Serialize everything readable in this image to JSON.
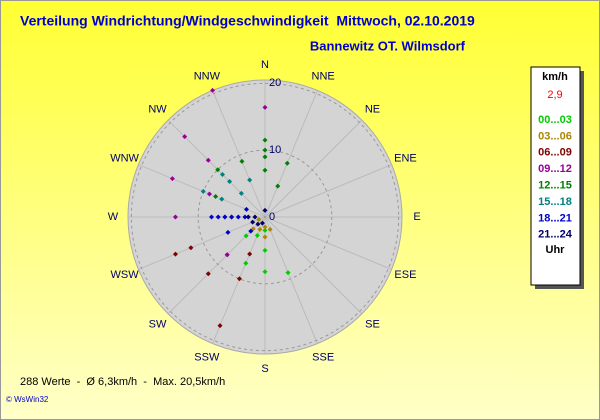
{
  "chart_data": {
    "type": "polar_scatter",
    "title": "Verteilung Windrichtung/Windgeschwindigkeit  Mittwoch, 02.10.2019",
    "subtitle": "Bannewitz OT. Wilmsdorf",
    "categories": [
      "N",
      "NNE",
      "NE",
      "ENE",
      "E",
      "ESE",
      "SE",
      "SSE",
      "S",
      "SSW",
      "SW",
      "WSW",
      "W",
      "WNW",
      "NW",
      "NNW"
    ],
    "rlim": [
      0,
      20.5
    ],
    "rticks": [
      0,
      10,
      20
    ],
    "legend_title": "km/h",
    "legend_value": "2,9",
    "legend_footer": "Uhr",
    "footer": "288 Werte  -  Ø 6,3km/h  -  Max. 20,5km/h",
    "credit": "© WsWin32",
    "series": [
      {
        "name": "00...03",
        "color": "#00cc00",
        "directions": [
          "S",
          "SSE",
          "SSW",
          "S",
          "SW",
          "SSW",
          "S"
        ],
        "values": [
          8.2,
          9,
          7.5,
          5,
          4,
          3,
          2
        ]
      },
      {
        "name": "03...06",
        "color": "#aa8800",
        "directions": [
          "S",
          "SSW",
          "SW",
          "SSE",
          "S",
          "WSW"
        ],
        "values": [
          3,
          2,
          2.5,
          2,
          1.5,
          1
        ]
      },
      {
        "name": "06...09",
        "color": "#800000",
        "directions": [
          "SSW",
          "WSW",
          "SW",
          "WSW",
          "SSW",
          "W",
          "SW",
          "SSW"
        ],
        "values": [
          17.6,
          14.5,
          12,
          12,
          10,
          5,
          8,
          6
        ]
      },
      {
        "name": "09...12",
        "color": "#990099",
        "directions": [
          "NNW",
          "NW",
          "WNW",
          "W",
          "N",
          "NW",
          "WNW",
          "SW"
        ],
        "values": [
          20.5,
          17,
          15,
          13.4,
          16.4,
          12,
          9,
          8
        ]
      },
      {
        "name": "12...15",
        "color": "#008000",
        "directions": [
          "N",
          "N",
          "N",
          "N",
          "NNW",
          "NNE",
          "NW",
          "NNE",
          "WNW"
        ],
        "values": [
          11.5,
          10,
          9,
          7,
          9,
          8.7,
          10,
          5,
          8
        ]
      },
      {
        "name": "15...18",
        "color": "#008080",
        "directions": [
          "NW",
          "NW",
          "WNW",
          "WNW",
          "NNW",
          "W",
          "NW"
        ],
        "values": [
          9,
          7.5,
          10,
          7,
          6,
          6,
          5
        ]
      },
      {
        "name": "18...21",
        "color": "#0000cc",
        "directions": [
          "W",
          "W",
          "W",
          "W",
          "W",
          "W",
          "WSW",
          "WNW",
          "SW"
        ],
        "values": [
          8,
          7,
          6,
          5,
          4,
          3,
          6,
          3,
          3
        ]
      },
      {
        "name": "21...24",
        "color": "#000066",
        "directions": [
          "W",
          "W",
          "WSW",
          "SW",
          "SSW",
          "N"
        ],
        "values": [
          2.5,
          1.5,
          2,
          1.5,
          1,
          1
        ]
      }
    ]
  }
}
